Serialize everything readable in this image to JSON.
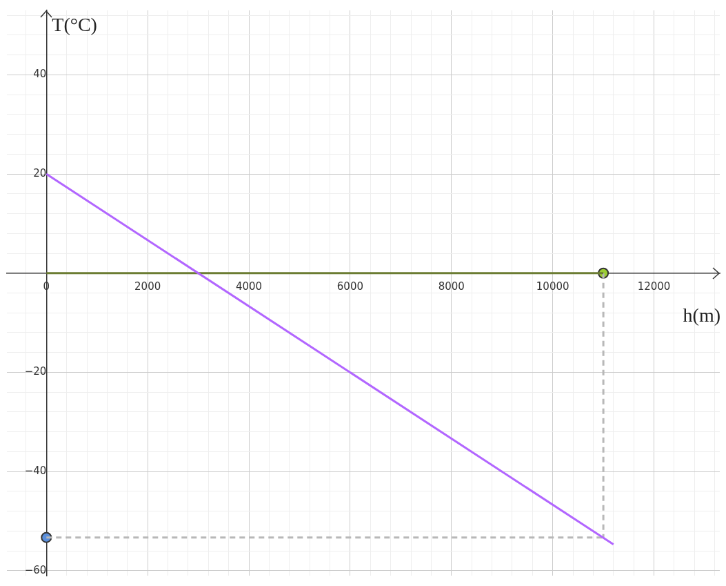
{
  "chart_data": {
    "type": "line",
    "xlabel": "h(m)",
    "ylabel": "T(°C)",
    "xlim": [
      -780,
      13300
    ],
    "ylim": [
      -61,
      53
    ],
    "xticks": [
      {
        "value": -400,
        "label": null
      },
      {
        "value": 0,
        "label": "0"
      },
      {
        "value": 400,
        "label": null
      },
      {
        "value": 800,
        "label": null
      },
      {
        "value": 1200,
        "label": null
      },
      {
        "value": 1600,
        "label": null
      },
      2000,
      {
        "value": 2400,
        "label": null
      },
      {
        "value": 2800,
        "label": null
      },
      {
        "value": 3200,
        "label": null
      },
      {
        "value": 3600,
        "label": null
      },
      4000,
      {
        "value": 4400,
        "label": null
      },
      {
        "value": 4800,
        "label": null
      },
      {
        "value": 5200,
        "label": null
      },
      {
        "value": 5600,
        "label": null
      },
      6000,
      {
        "value": 6400,
        "label": null
      },
      {
        "value": 6800,
        "label": null
      },
      {
        "value": 7200,
        "label": null
      },
      {
        "value": 7600,
        "label": null
      },
      8000,
      {
        "value": 8400,
        "label": null
      },
      {
        "value": 8800,
        "label": null
      },
      {
        "value": 9200,
        "label": null
      },
      {
        "value": 9600,
        "label": null
      },
      10000,
      {
        "value": 10400,
        "label": null
      },
      {
        "value": 10800,
        "label": null
      },
      {
        "value": 11200,
        "label": null
      },
      {
        "value": 11600,
        "label": null
      },
      12000,
      {
        "value": 12400,
        "label": null
      },
      {
        "value": 12800,
        "label": null
      },
      {
        "value": 13200,
        "label": null
      }
    ],
    "yticks": [
      {
        "value": -60,
        "label": "−60"
      },
      {
        "value": -56,
        "label": null
      },
      {
        "value": -52,
        "label": null
      },
      {
        "value": -48,
        "label": null
      },
      {
        "value": -44,
        "label": null
      },
      {
        "value": -40,
        "label": "−40"
      },
      {
        "value": -36,
        "label": null
      },
      {
        "value": -32,
        "label": null
      },
      {
        "value": -28,
        "label": null
      },
      {
        "value": -24,
        "label": null
      },
      {
        "value": -20,
        "label": "−20"
      },
      {
        "value": -16,
        "label": null
      },
      {
        "value": -12,
        "label": null
      },
      {
        "value": -8,
        "label": null
      },
      {
        "value": -4,
        "label": null
      },
      {
        "value": 0,
        "label": null
      },
      {
        "value": 4,
        "label": null
      },
      {
        "value": 8,
        "label": null
      },
      {
        "value": 12,
        "label": null
      },
      {
        "value": 16,
        "label": null
      },
      20,
      {
        "value": 24,
        "label": null
      },
      {
        "value": 28,
        "label": null
      },
      {
        "value": 32,
        "label": null
      },
      {
        "value": 36,
        "label": null
      },
      40,
      {
        "value": 44,
        "label": null
      },
      {
        "value": 48,
        "label": null
      },
      {
        "value": 52,
        "label": null
      }
    ],
    "grid": true,
    "legend": false,
    "series": [
      {
        "color": "#b266ff",
        "x": [
          0,
          11200
        ],
        "values": [
          20,
          -54.7
        ]
      },
      {
        "color": "#6b7c32",
        "x": [
          0,
          11000
        ],
        "values": [
          0,
          0
        ]
      },
      {
        "color": "#b8b8b8",
        "line_style": "dashed",
        "x": [
          11000,
          11000
        ],
        "values": [
          0,
          -53.3
        ]
      },
      {
        "color": "#b8b8b8",
        "line_style": "dashed",
        "x": [
          0,
          11000
        ],
        "values": [
          -53.3,
          -53.3
        ]
      },
      {
        "type": "scatter",
        "color": "#9acd32",
        "marker": "circle",
        "x": [
          11000
        ],
        "values": [
          0
        ]
      },
      {
        "type": "scatter",
        "color": "#5a8fdc",
        "marker": "circle",
        "x": [
          0
        ],
        "values": [
          -53.3
        ]
      }
    ]
  }
}
